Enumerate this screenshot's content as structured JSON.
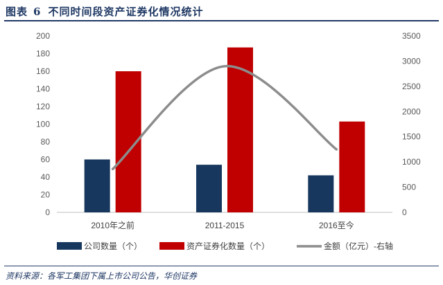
{
  "header": {
    "label": "图表",
    "number": "6",
    "title": "不同时间段资产证券化情况统计"
  },
  "footer": {
    "source": "资料来源：各军工集团下属上市公司公告，华创证券"
  },
  "chart_data": {
    "type": "bar",
    "categories": [
      "2010年之前",
      "2011-2015",
      "2016至今"
    ],
    "series": [
      {
        "name": "公司数量（个）",
        "type": "bar",
        "axis": "left",
        "color": "#17375e",
        "values": [
          60,
          54,
          42
        ]
      },
      {
        "name": "资产证券化数量（个）",
        "type": "bar",
        "axis": "left",
        "color": "#c00000",
        "values": [
          160,
          187,
          103
        ]
      },
      {
        "name": "金额（亿元）-右轴",
        "type": "line",
        "axis": "right",
        "color": "#8c8c8c",
        "values": [
          860,
          2900,
          1250
        ]
      }
    ],
    "ylim_left": [
      0,
      200
    ],
    "yticks_left": [
      0,
      20,
      40,
      60,
      80,
      100,
      120,
      140,
      160,
      180,
      200
    ],
    "ylim_right": [
      0,
      3500
    ],
    "yticks_right": [
      0,
      500,
      1000,
      1500,
      2000,
      2500,
      3000,
      3500
    ],
    "legend_position": "bottom",
    "grid": false
  }
}
